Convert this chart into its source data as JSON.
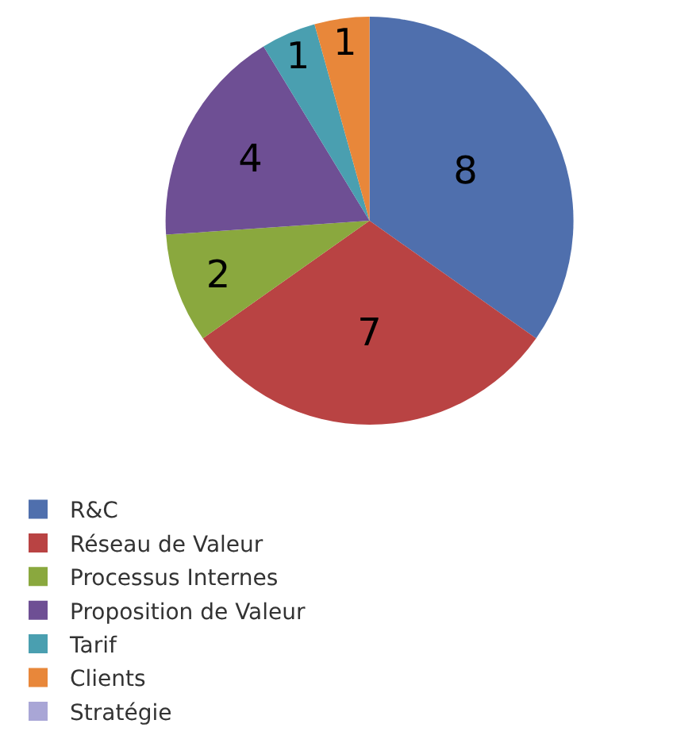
{
  "chart_data": {
    "type": "pie",
    "categories": [
      "R&C",
      "Réseau de Valeur",
      "Processus Internes",
      "Proposition de Valeur",
      "Tarif",
      "Clients",
      "Stratégie"
    ],
    "values": [
      8,
      7,
      2,
      4,
      1,
      1,
      0
    ],
    "colors": [
      "#4f6fad",
      "#b94343",
      "#8aa83e",
      "#6e4f94",
      "#4a9fb0",
      "#e8873a",
      "#a9a6d6"
    ],
    "value_labels": [
      "8",
      "7",
      "2",
      "4",
      "1",
      "1",
      null
    ],
    "legend": "bottom"
  }
}
